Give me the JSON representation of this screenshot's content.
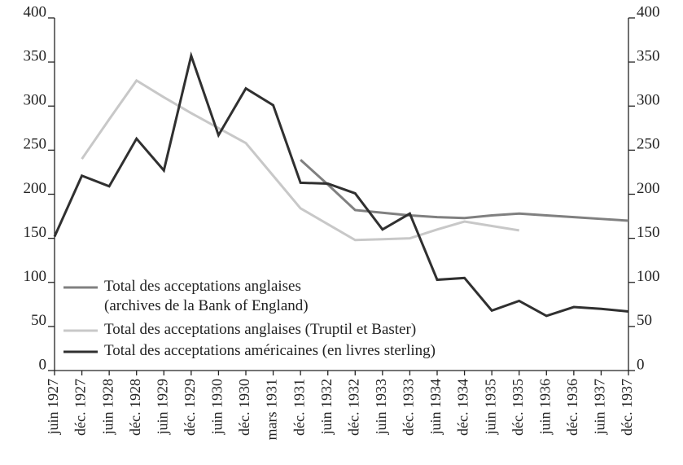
{
  "chart_data": {
    "type": "line",
    "categories": [
      "juin 1927",
      "déc. 1927",
      "juin 1928",
      "déc. 1928",
      "juin 1929",
      "déc. 1929",
      "juin 1930",
      "déc. 1930",
      "mars 1931",
      "déc. 1931",
      "juin 1932",
      "déc. 1932",
      "juin 1933",
      "déc. 1933",
      "juin 1934",
      "déc. 1934",
      "juin 1935",
      "déc. 1935",
      "juin 1936",
      "déc. 1936",
      "juin 1937",
      "déc. 1937"
    ],
    "series": [
      {
        "name": "Total des acceptations anglaises\n(archives de la Bank of England)",
        "color": "#808080",
        "values": [
          null,
          null,
          null,
          null,
          null,
          null,
          null,
          null,
          null,
          239,
          211,
          182,
          179,
          176,
          174,
          173,
          176,
          178,
          176,
          174,
          172,
          170
        ]
      },
      {
        "name": "Total des acceptations anglaises (Truptil et Baster)",
        "color": "#c8c8c8",
        "values": [
          null,
          240,
          285,
          329,
          310,
          292,
          275,
          258,
          221,
          184,
          166,
          148,
          149,
          150,
          160,
          169,
          164,
          159,
          null,
          null,
          null,
          null
        ]
      },
      {
        "name": "Total des acceptations américaines (en livres sterling)",
        "color": "#303030",
        "values": [
          152,
          221,
          209,
          263,
          227,
          357,
          267,
          320,
          301,
          213,
          212,
          201,
          160,
          178,
          103,
          105,
          68,
          79,
          62,
          72,
          70,
          67
        ]
      }
    ],
    "ylim": [
      0,
      400
    ],
    "yticks": [
      0,
      50,
      100,
      150,
      200,
      250,
      300,
      350,
      400
    ],
    "y2lim": [
      0,
      400
    ],
    "y2ticks": [
      0,
      50,
      100,
      150,
      200,
      250,
      300,
      350,
      400
    ]
  }
}
